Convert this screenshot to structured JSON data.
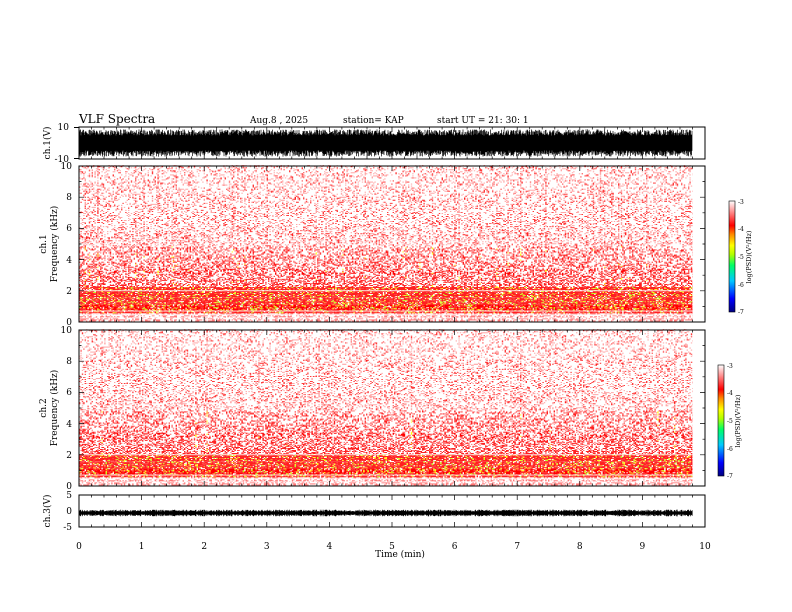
{
  "chart_data": {
    "type": "spectrogram",
    "title": "VLF Spectra",
    "date": "Aug.8  , 2025",
    "station": "station= KAP",
    "start": "start  UT  =   21: 30: 1",
    "xlabel": "Time  (min)",
    "xlim": [
      0,
      10
    ],
    "xticks": [
      "0",
      "1",
      "2",
      "3",
      "4",
      "5",
      "6",
      "7",
      "8",
      "9",
      "10"
    ],
    "data_end_min": 9.8,
    "panels": [
      {
        "id": "ch1-waveform",
        "type": "waveform",
        "ylabel": "ch.1(V)",
        "ylim": [
          -10,
          10
        ],
        "yticks": [
          "10",
          "-10"
        ],
        "amplitude_fraction": 0.85
      },
      {
        "id": "ch1-spectrogram",
        "type": "heatmap",
        "ylabel_top": "ch.1",
        "ylabel": "Frequency  (kHz)",
        "ylim": [
          0,
          10
        ],
        "yticks": [
          "0",
          "2",
          "4",
          "6",
          "8",
          "10"
        ],
        "clim": [
          -7,
          -3
        ],
        "colorbar_label": "log(PSD)(V²/Hz)",
        "colorbar_ticks": [
          "-3",
          "-4",
          "-5",
          "-6",
          "-7"
        ],
        "intense_band_khz": [
          0.5,
          2.2
        ],
        "white_lines_khz": [
          0.25,
          0.45,
          0.7,
          2.0
        ]
      },
      {
        "id": "ch2-spectrogram",
        "type": "heatmap",
        "ylabel_top": "ch.2",
        "ylabel": "Frequency  (kHz)",
        "ylim": [
          0,
          10
        ],
        "yticks": [
          "0",
          "2",
          "4",
          "6",
          "8",
          "10"
        ],
        "clim": [
          -7,
          -3
        ],
        "colorbar_label": "log(PSD)(V²/Hz)",
        "colorbar_ticks": [
          "-3",
          "-4",
          "-5",
          "-6",
          "-7"
        ],
        "intense_band_khz": [
          0.5,
          2.0
        ],
        "white_lines_khz": [
          0.25,
          0.45,
          0.7,
          2.0
        ]
      },
      {
        "id": "ch3-waveform",
        "type": "waveform",
        "ylabel": "ch.3(V)",
        "ylim": [
          -5,
          5
        ],
        "yticks": [
          "5",
          "0",
          "-5"
        ],
        "amplitude_fraction": 0.07
      }
    ],
    "colormap": [
      "#000080",
      "#0000ff",
      "#00c8ff",
      "#00ff66",
      "#b4ff00",
      "#ffff00",
      "#ff8800",
      "#ff0000",
      "#ffffff"
    ]
  }
}
